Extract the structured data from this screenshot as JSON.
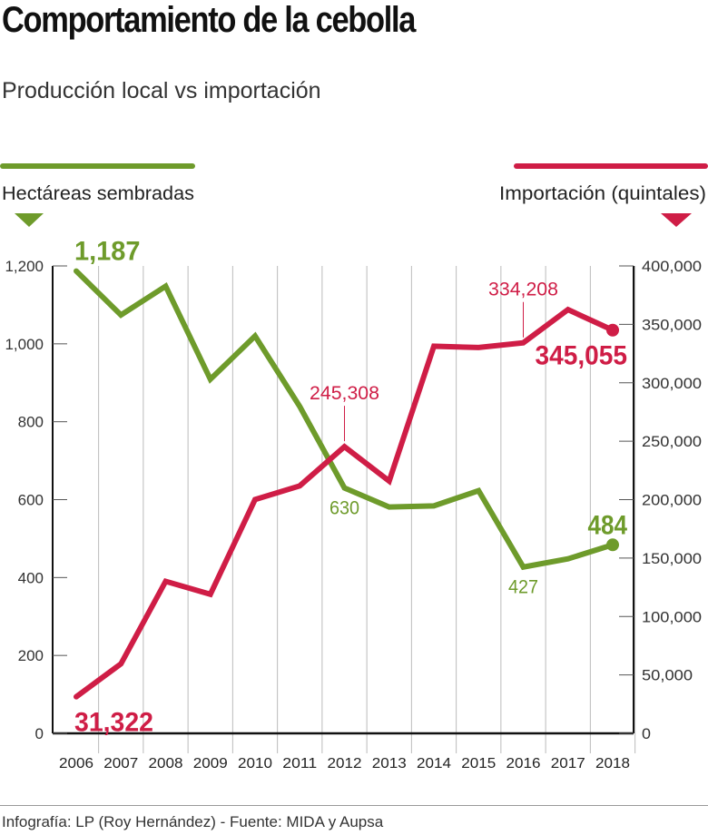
{
  "title": "Comportamiento de la cebolla",
  "subtitle": "Producción local vs importación",
  "footer": "Infografía: LP (Roy Hernández) - Fuente: MIDA y Aupsa",
  "colors": {
    "green": "#6e9b2b",
    "red": "#cf1d46",
    "axis": "#111111",
    "grid": "#bbbbbb"
  },
  "chart_data": {
    "type": "line",
    "x": [
      "2006",
      "2007",
      "2008",
      "2009",
      "2010",
      "2011",
      "2012",
      "2013",
      "2014",
      "2015",
      "2016",
      "2017",
      "2018"
    ],
    "y_left": {
      "label": "Hectáreas sembradas",
      "range": [
        0,
        1200
      ],
      "ticks": [
        0,
        200,
        400,
        600,
        800,
        1000,
        1200
      ],
      "tick_labels": [
        "0",
        "200",
        "400",
        "600",
        "800",
        "1,000",
        "1,200"
      ]
    },
    "y_right": {
      "label": "Importación (quintales)",
      "range": [
        0,
        400000
      ],
      "ticks": [
        0,
        50000,
        100000,
        150000,
        200000,
        250000,
        300000,
        350000,
        400000
      ],
      "tick_labels": [
        "0",
        "50,000",
        "100,000",
        "150,000",
        "200,000",
        "250,000",
        "300,000",
        "350,000",
        "400,000"
      ]
    },
    "grid": "vertical",
    "series": [
      {
        "name": "Hectáreas sembradas",
        "axis": "left",
        "color": "#6e9b2b",
        "values": [
          1187,
          1074,
          1148,
          909,
          1020,
          839,
          630,
          581,
          584,
          623,
          427,
          448,
          484
        ]
      },
      {
        "name": "Importación (quintales)",
        "axis": "right",
        "color": "#cf1d46",
        "values": [
          31322,
          59500,
          130100,
          119000,
          200100,
          211800,
          245308,
          215900,
          331300,
          330200,
          334208,
          362600,
          345055
        ]
      }
    ],
    "annotations": [
      {
        "series": 0,
        "x": "2006",
        "text": "1,187",
        "bold": true,
        "pos": "above"
      },
      {
        "series": 0,
        "x": "2012",
        "text": "630",
        "bold": false,
        "pos": "below"
      },
      {
        "series": 0,
        "x": "2016",
        "text": "427",
        "bold": false,
        "pos": "below"
      },
      {
        "series": 0,
        "x": "2018",
        "text": "484",
        "bold": true,
        "pos": "above"
      },
      {
        "series": 1,
        "x": "2006",
        "text": "31,322",
        "bold": true,
        "pos": "below"
      },
      {
        "series": 1,
        "x": "2012",
        "text": "245,308",
        "bold": false,
        "pos": "above-leader"
      },
      {
        "series": 1,
        "x": "2016",
        "text": "334,208",
        "bold": false,
        "pos": "above-leader"
      },
      {
        "series": 1,
        "x": "2018",
        "text": "345,055",
        "bold": true,
        "pos": "below"
      }
    ]
  }
}
